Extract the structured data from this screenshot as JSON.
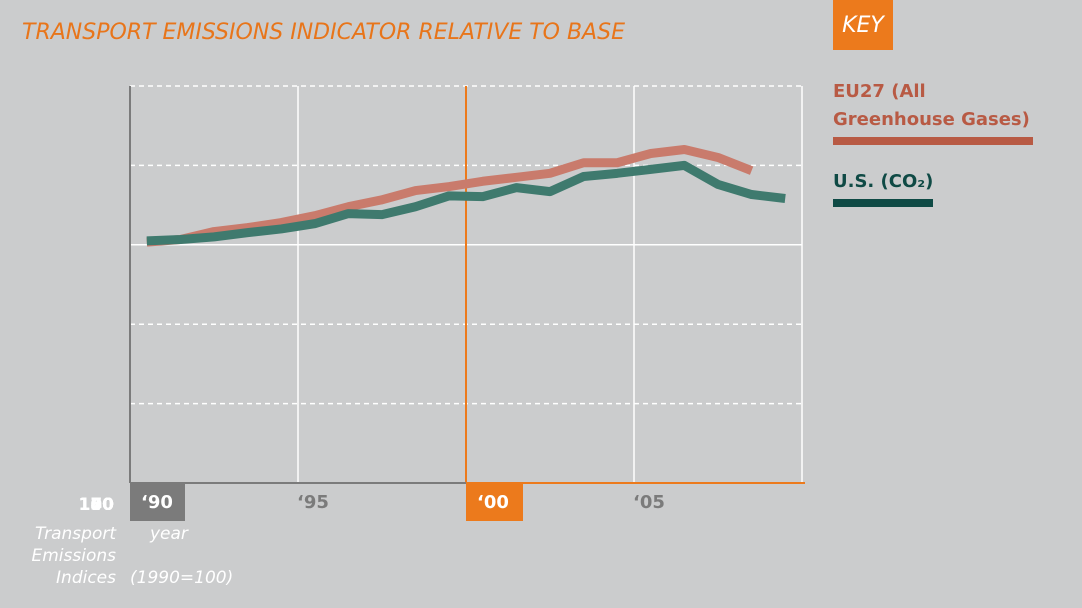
{
  "chart_data": {
    "type": "line",
    "title": "TRANSPORT EMISSIONS INDICATOR RELATIVE TO BASE",
    "legend_title": "KEY",
    "x_label": "year",
    "y_label": "Transport Emissions Indices",
    "y_note": "(1990=100)",
    "x": [
      1990,
      1991,
      1992,
      1993,
      1994,
      1995,
      1996,
      1997,
      1998,
      1999,
      2000,
      2001,
      2002,
      2003,
      2004,
      2005,
      2006,
      2007,
      2008,
      2009
    ],
    "series": [
      {
        "name": "EU27 (All Greenhouse Gases)",
        "color": "#c97b6c",
        "key_color": "#b85a44",
        "values": [
          101,
          102,
          105,
          106.5,
          108.4,
          111,
          114.4,
          117,
          120.5,
          122,
          124,
          125.5,
          127,
          131,
          131,
          134.5,
          136,
          133,
          128,
          null
        ]
      },
      {
        "name": "U.S. (CO₂)",
        "color": "#3f7a6e",
        "key_color": "#0f4a45",
        "values": [
          101.5,
          102,
          103,
          104.6,
          106,
          108,
          111.8,
          111.4,
          114.4,
          118.5,
          118.2,
          121.6,
          120.1,
          125.8,
          127,
          128.5,
          130,
          122.8,
          119,
          117.5
        ]
      }
    ],
    "xlim": [
      1990,
      2010
    ],
    "xticks": [
      {
        "value": 1990,
        "label": "‘90",
        "highlight": "#7b7b7b"
      },
      {
        "value": 1995,
        "label": "‘95"
      },
      {
        "value": 2000,
        "label": "‘00",
        "highlight": "#ec7a1c"
      },
      {
        "value": 2005,
        "label": "‘05"
      }
    ],
    "ylim": [
      0,
      160
    ],
    "yticks": [
      0,
      40,
      70,
      100,
      130,
      160
    ],
    "grid": true
  }
}
